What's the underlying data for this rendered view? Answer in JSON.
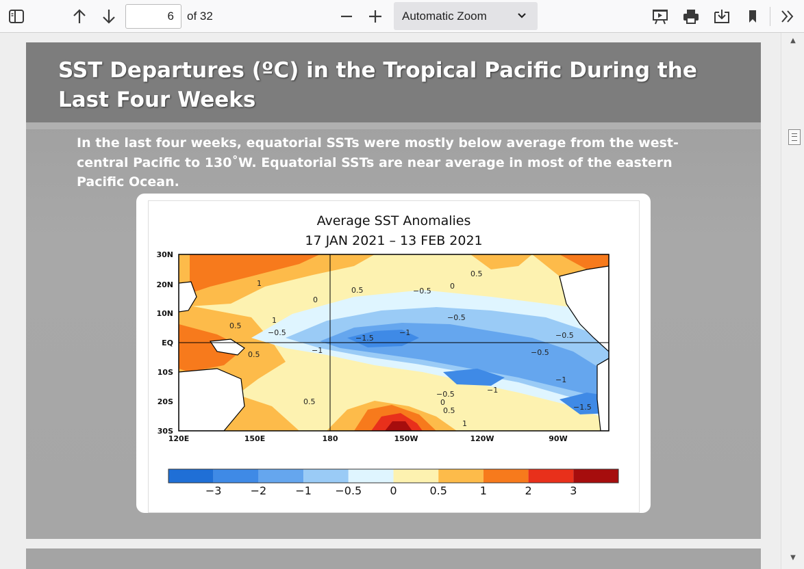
{
  "toolbar": {
    "page_number": "6",
    "page_count_label": "of 32",
    "zoom_label": "Automatic Zoom"
  },
  "slide": {
    "title": "SST Departures (ºC) in the Tropical Pacific During the Last Four Weeks",
    "body": "In the last four weeks, equatorial SSTs were mostly below average from the west-central Pacific to 130˚W.  Equatorial SSTs are near average in most of the eastern Pacific Ocean."
  },
  "figure": {
    "title_line1": "Average SST Anomalies",
    "title_line2": "17 JAN 2021 – 13 FEB 2021",
    "lat_labels": [
      "30N",
      "20N",
      "10N",
      "EQ",
      "10S",
      "20S",
      "30S"
    ],
    "lon_labels": [
      "120E",
      "150E",
      "180",
      "150W",
      "120W",
      "90W"
    ],
    "contour_labels": [
      "1",
      "0.5",
      "0",
      "0.5",
      "−0.5",
      "0",
      "0.5",
      "−0.5",
      "−1.5",
      "−1",
      "−1",
      "−0.5",
      "−0.5",
      "−1",
      "−1",
      "0.5",
      "−0.5",
      "0",
      "0.5",
      "1",
      "−1.5",
      "1",
      "0.5",
      "−0.5"
    ],
    "colorbar_labels": [
      "−3",
      "−2",
      "−1",
      "−0.5",
      "0",
      "0.5",
      "1",
      "2",
      "3"
    ],
    "colorbar_colors": [
      "#1f6fd6",
      "#3f8ae6",
      "#65a6ee",
      "#9acbf6",
      "#dff5ff",
      "#fdf2b0",
      "#fdbb4a",
      "#f77a1c",
      "#e8301b",
      "#a60d0d"
    ]
  }
}
